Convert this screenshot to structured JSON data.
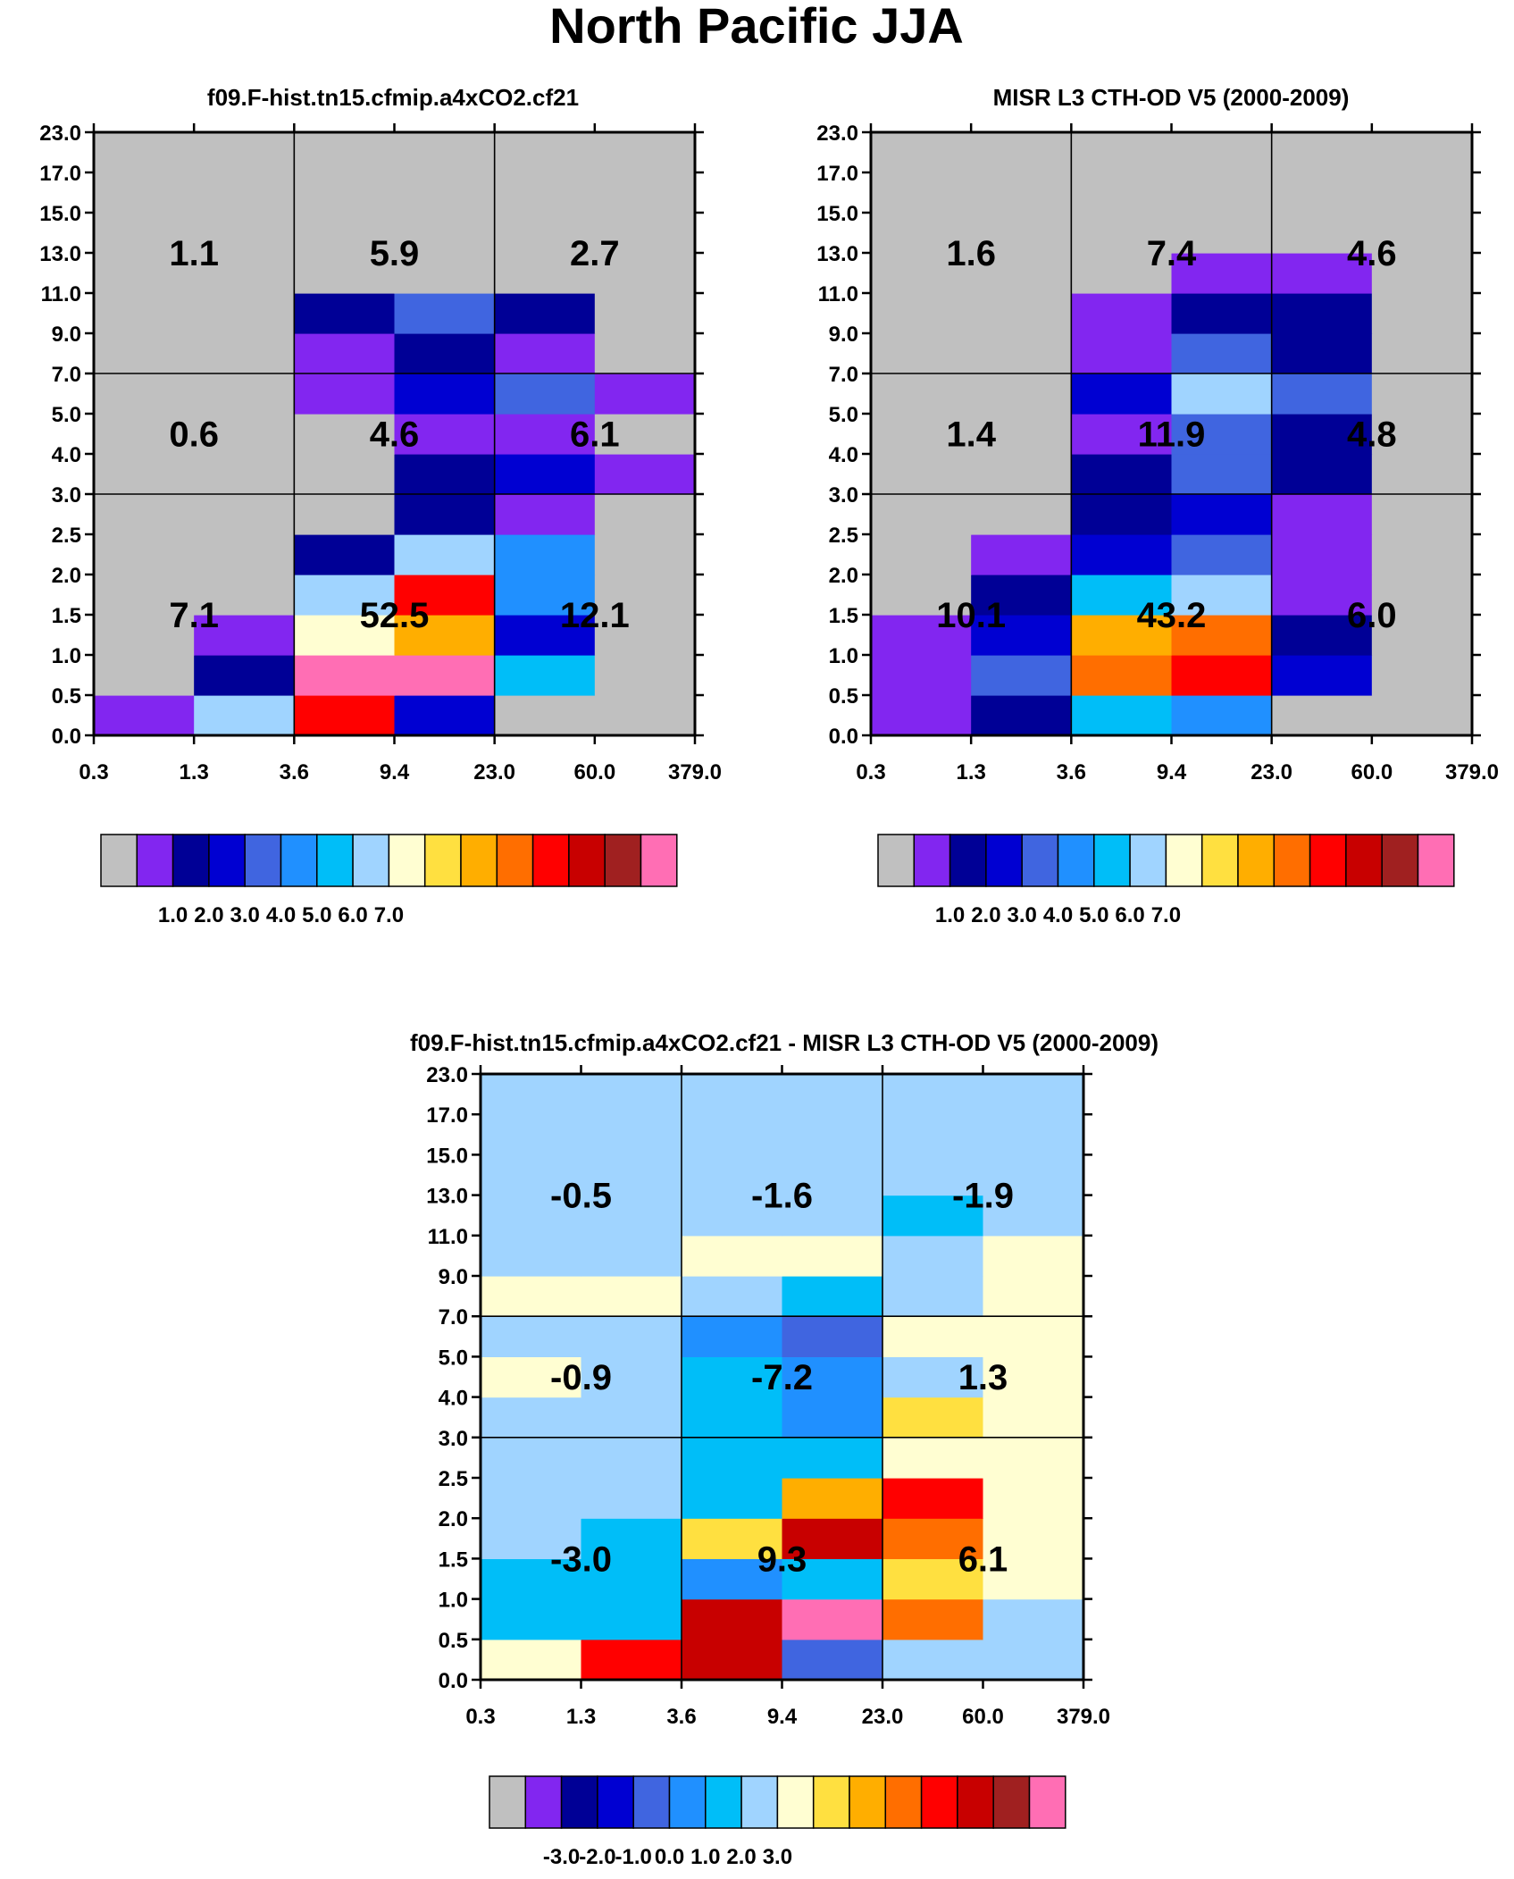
{
  "title": "North Pacific JJA",
  "palette": [
    "#c0c0c0",
    "#8226f0",
    "#000096",
    "#0000d2",
    "#4065e0",
    "#2090ff",
    "#00bef8",
    "#a0d4ff",
    "#fffed2",
    "#ffe040",
    "#ffae00",
    "#ff6e00",
    "#ff0000",
    "#c80000",
    "#a02020",
    "#ff6eb4"
  ],
  "chart_data": [
    {
      "type": "heatmap",
      "title": "f09.F-hist.tn15.cfmip.a4xCO2.cf21",
      "xlabel": "",
      "ylabel": "",
      "x_ticks": [
        "0.3",
        "1.3",
        "3.6",
        "9.4",
        "23.0",
        "60.0",
        "379.0"
      ],
      "y_ticks": [
        "0.0",
        "0.5",
        "1.0",
        "1.5",
        "2.0",
        "2.5",
        "3.0",
        "4.0",
        "5.0",
        "7.0",
        "9.0",
        "11.0",
        "13.0",
        "15.0",
        "17.0",
        "23.0"
      ],
      "cells_color_index": [
        [
          1,
          7,
          12,
          3,
          0,
          0
        ],
        [
          0,
          2,
          15,
          15,
          6,
          0
        ],
        [
          0,
          1,
          8,
          10,
          3,
          0
        ],
        [
          0,
          0,
          7,
          12,
          5,
          0
        ],
        [
          0,
          0,
          2,
          7,
          5,
          0
        ],
        [
          0,
          0,
          0,
          2,
          1,
          0
        ],
        [
          0,
          0,
          0,
          2,
          3,
          1
        ],
        [
          0,
          0,
          0,
          1,
          1,
          0
        ],
        [
          0,
          0,
          1,
          3,
          4,
          1
        ],
        [
          0,
          0,
          1,
          2,
          1,
          0
        ],
        [
          0,
          0,
          2,
          4,
          2,
          0
        ],
        [
          0,
          0,
          0,
          0,
          0,
          0
        ],
        [
          0,
          0,
          0,
          0,
          0,
          0
        ],
        [
          0,
          0,
          0,
          0,
          0,
          0
        ],
        [
          0,
          0,
          0,
          0,
          0,
          0
        ]
      ],
      "region_labels": [
        {
          "text": "1.1",
          "col": 0,
          "row": 2
        },
        {
          "text": "5.9",
          "col": 1,
          "row": 2
        },
        {
          "text": "2.7",
          "col": 2,
          "row": 2
        },
        {
          "text": "0.6",
          "col": 0,
          "row": 1
        },
        {
          "text": "4.6",
          "col": 1,
          "row": 1
        },
        {
          "text": "6.1",
          "col": 2,
          "row": 1
        },
        {
          "text": "7.1",
          "col": 0,
          "row": 0
        },
        {
          "text": "52.5",
          "col": 1,
          "row": 0
        },
        {
          "text": "12.1",
          "col": 2,
          "row": 0
        }
      ],
      "colorbar_labels": [
        "1.0",
        "2.0",
        "3.0",
        "4.0",
        "5.0",
        "6.0",
        "7.0"
      ]
    },
    {
      "type": "heatmap",
      "title": "MISR L3 CTH-OD V5 (2000-2009)",
      "xlabel": "",
      "ylabel": "",
      "x_ticks": [
        "0.3",
        "1.3",
        "3.6",
        "9.4",
        "23.0",
        "60.0",
        "379.0"
      ],
      "y_ticks": [
        "0.0",
        "0.5",
        "1.0",
        "1.5",
        "2.0",
        "2.5",
        "3.0",
        "4.0",
        "5.0",
        "7.0",
        "9.0",
        "11.0",
        "13.0",
        "15.0",
        "17.0",
        "23.0"
      ],
      "cells_color_index": [
        [
          1,
          2,
          6,
          5,
          0,
          0
        ],
        [
          1,
          4,
          11,
          12,
          3,
          0
        ],
        [
          1,
          3,
          10,
          11,
          2,
          0
        ],
        [
          0,
          2,
          6,
          7,
          1,
          0
        ],
        [
          0,
          1,
          3,
          4,
          1,
          0
        ],
        [
          0,
          0,
          2,
          3,
          1,
          0
        ],
        [
          0,
          0,
          2,
          4,
          2,
          0
        ],
        [
          0,
          0,
          1,
          4,
          2,
          0
        ],
        [
          0,
          0,
          3,
          7,
          4,
          0
        ],
        [
          0,
          0,
          1,
          4,
          2,
          0
        ],
        [
          0,
          0,
          1,
          2,
          2,
          0
        ],
        [
          0,
          0,
          0,
          1,
          1,
          0
        ],
        [
          0,
          0,
          0,
          0,
          0,
          0
        ],
        [
          0,
          0,
          0,
          0,
          0,
          0
        ],
        [
          0,
          0,
          0,
          0,
          0,
          0
        ]
      ],
      "region_labels": [
        {
          "text": "1.6",
          "col": 0,
          "row": 2
        },
        {
          "text": "7.4",
          "col": 1,
          "row": 2
        },
        {
          "text": "4.6",
          "col": 2,
          "row": 2
        },
        {
          "text": "1.4",
          "col": 0,
          "row": 1
        },
        {
          "text": "11.9",
          "col": 1,
          "row": 1
        },
        {
          "text": "4.8",
          "col": 2,
          "row": 1
        },
        {
          "text": "10.1",
          "col": 0,
          "row": 0
        },
        {
          "text": "43.2",
          "col": 1,
          "row": 0
        },
        {
          "text": "6.0",
          "col": 2,
          "row": 0
        }
      ],
      "colorbar_labels": [
        "1.0",
        "2.0",
        "3.0",
        "4.0",
        "5.0",
        "6.0",
        "7.0"
      ]
    },
    {
      "type": "heatmap",
      "title": "f09.F-hist.tn15.cfmip.a4xCO2.cf21 - MISR L3 CTH-OD V5 (2000-2009)",
      "xlabel": "",
      "ylabel": "",
      "x_ticks": [
        "0.3",
        "1.3",
        "3.6",
        "9.4",
        "23.0",
        "60.0",
        "379.0"
      ],
      "y_ticks": [
        "0.0",
        "0.5",
        "1.0",
        "1.5",
        "2.0",
        "2.5",
        "3.0",
        "4.0",
        "5.0",
        "7.0",
        "9.0",
        "11.0",
        "13.0",
        "15.0",
        "17.0",
        "23.0"
      ],
      "cells_color_index": [
        [
          8,
          12,
          13,
          4,
          7,
          7
        ],
        [
          6,
          6,
          13,
          15,
          11,
          7
        ],
        [
          6,
          6,
          5,
          6,
          9,
          8
        ],
        [
          7,
          6,
          9,
          13,
          11,
          8
        ],
        [
          7,
          7,
          6,
          10,
          12,
          8
        ],
        [
          7,
          7,
          6,
          6,
          8,
          8
        ],
        [
          7,
          7,
          6,
          5,
          9,
          8
        ],
        [
          8,
          7,
          6,
          5,
          7,
          8
        ],
        [
          7,
          7,
          5,
          4,
          8,
          8
        ],
        [
          8,
          8,
          7,
          6,
          7,
          8
        ],
        [
          7,
          7,
          8,
          8,
          7,
          8
        ],
        [
          7,
          7,
          7,
          7,
          6,
          7
        ],
        [
          7,
          7,
          7,
          7,
          7,
          7
        ],
        [
          7,
          7,
          7,
          7,
          7,
          7
        ],
        [
          7,
          7,
          7,
          7,
          7,
          7
        ]
      ],
      "region_labels": [
        {
          "text": "-0.5",
          "col": 0,
          "row": 2
        },
        {
          "text": "-1.6",
          "col": 1,
          "row": 2
        },
        {
          "text": "-1.9",
          "col": 2,
          "row": 2
        },
        {
          "text": "-0.9",
          "col": 0,
          "row": 1
        },
        {
          "text": "-7.2",
          "col": 1,
          "row": 1
        },
        {
          "text": "1.3",
          "col": 2,
          "row": 1
        },
        {
          "text": "-3.0",
          "col": 0,
          "row": 0
        },
        {
          "text": "9.3",
          "col": 1,
          "row": 0
        },
        {
          "text": "6.1",
          "col": 2,
          "row": 0
        }
      ],
      "colorbar_labels": [
        "-3.0",
        "-2.0",
        "-1.0",
        "0.0",
        "1.0",
        "2.0",
        "3.0"
      ]
    }
  ]
}
